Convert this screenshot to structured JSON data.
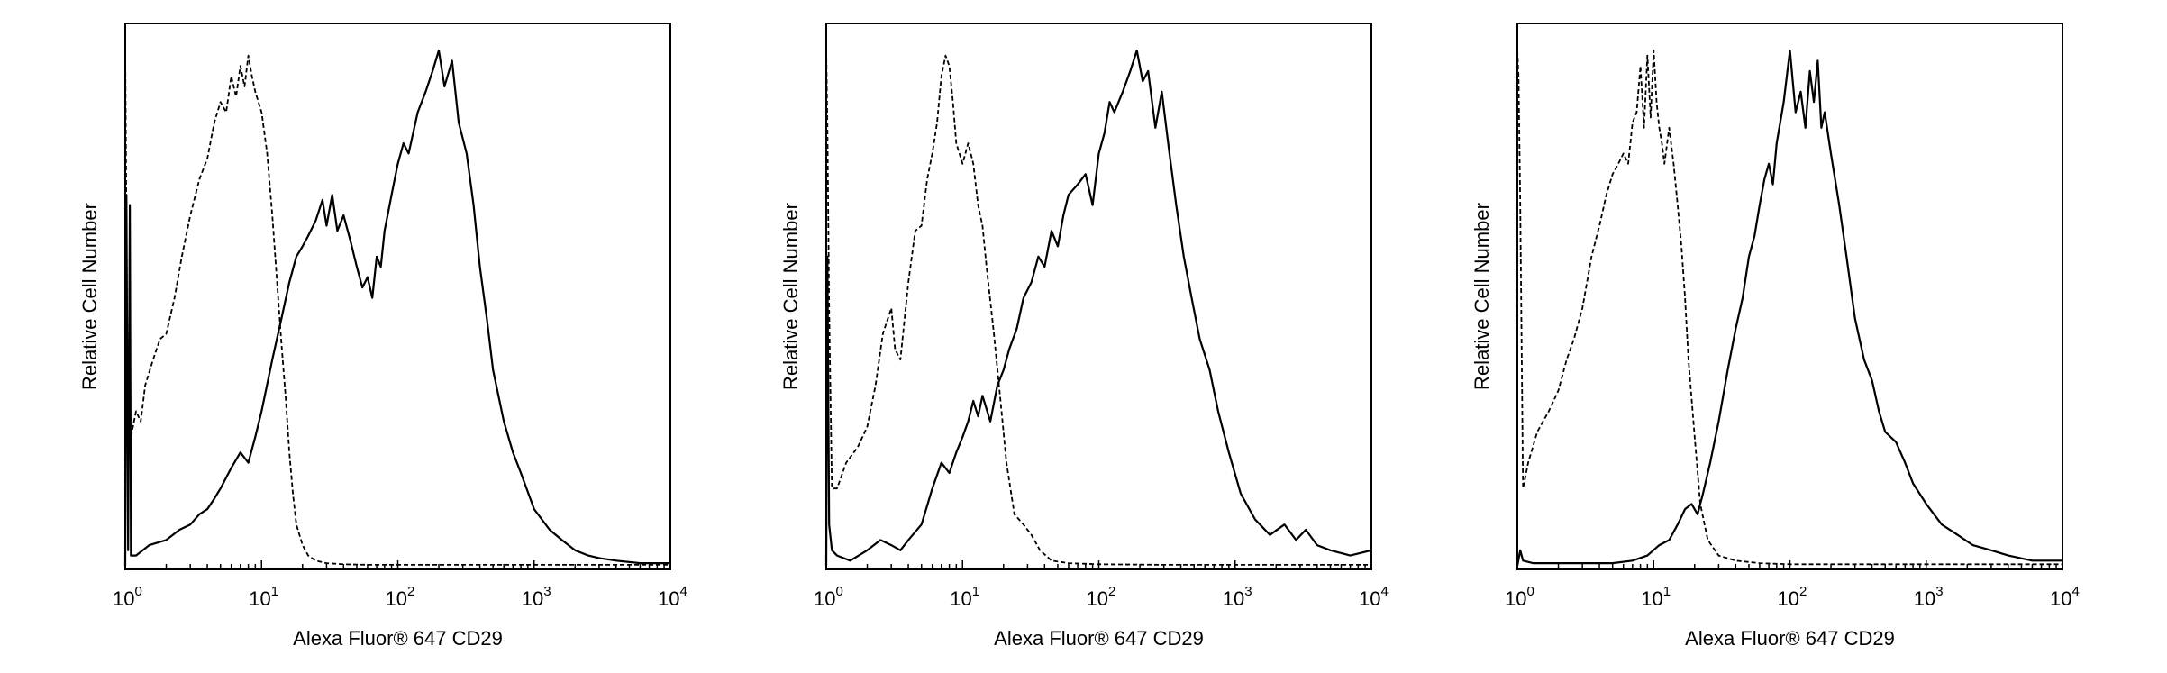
{
  "chart_data": [
    {
      "type": "line",
      "panel": "left",
      "xlabel": "Alexa Fluor® 647 CD29",
      "ylabel": "Relative Cell Number",
      "xscale": "log",
      "xlim": [
        1,
        10000
      ],
      "ylim": [
        0,
        100
      ],
      "y_tick_labels": false,
      "x_ticks": [
        {
          "base": "10",
          "exp": "0"
        },
        {
          "base": "10",
          "exp": "1"
        },
        {
          "base": "10",
          "exp": "2"
        },
        {
          "base": "10",
          "exp": "3"
        },
        {
          "base": "10",
          "exp": "4"
        }
      ],
      "grid": false,
      "series": [
        {
          "style": "dashed",
          "x": [
            1.0,
            1.05,
            1.1,
            1.2,
            1.3,
            1.4,
            1.6,
            1.8,
            2.0,
            2.3,
            2.6,
            3.0,
            3.5,
            4.0,
            4.5,
            5.0,
            5.5,
            6.0,
            6.5,
            7.0,
            7.5,
            8.0,
            8.5,
            9.0,
            10.0,
            11.0,
            12.0,
            13.0,
            14.0,
            15.0,
            16.0,
            17.0,
            18.0,
            20.0,
            22.0,
            25.0,
            30.0,
            40.0,
            60.0,
            100.0,
            200.0,
            500.0,
            1000.0,
            3000.0,
            10000.0
          ],
          "y": [
            100,
            22,
            25,
            30,
            28,
            35,
            40,
            44,
            45,
            52,
            60,
            68,
            75,
            79,
            86,
            90,
            88,
            95,
            91,
            97,
            93,
            99,
            95,
            92,
            88,
            80,
            68,
            55,
            43,
            33,
            22,
            14,
            8,
            4,
            2,
            1,
            0.5,
            0.3,
            0.2,
            0.2,
            0.2,
            0.2,
            0.2,
            0.2,
            0.2
          ]
        },
        {
          "style": "solid",
          "x": [
            1.0,
            1.02,
            1.05,
            1.08,
            1.1,
            1.2,
            1.5,
            2.0,
            2.5,
            3.0,
            3.5,
            4.0,
            4.5,
            5.0,
            6.0,
            7.0,
            8.0,
            9.0,
            10.0,
            12.0,
            14.0,
            16.0,
            18.0,
            20.0,
            22.0,
            25.0,
            28.0,
            30.0,
            33.0,
            36.0,
            40.0,
            45.0,
            50.0,
            55.0,
            60.0,
            65.0,
            70.0,
            75.0,
            80.0,
            90.0,
            100.0,
            110.0,
            120.0,
            140.0,
            160.0,
            180.0,
            200.0,
            220.0,
            250.0,
            280.0,
            320.0,
            360.0,
            400.0,
            450.0,
            500.0,
            600.0,
            700.0,
            800.0,
            1000.0,
            1300.0,
            1600.0,
            2000.0,
            2500.0,
            3000.0,
            4000.0,
            6000.0,
            10000.0
          ],
          "y": [
            0,
            72,
            3,
            70,
            2,
            2,
            4,
            5,
            7,
            8,
            10,
            11,
            13,
            15,
            19,
            22,
            20,
            25,
            30,
            40,
            48,
            55,
            60,
            62,
            64,
            67,
            71,
            66,
            72,
            65,
            68,
            63,
            58,
            54,
            56,
            52,
            60,
            58,
            65,
            72,
            78,
            82,
            80,
            88,
            92,
            96,
            100,
            93,
            98,
            86,
            80,
            70,
            58,
            48,
            38,
            28,
            22,
            18,
            11,
            7,
            5,
            3,
            2,
            1.5,
            1,
            0.5,
            0.5
          ]
        }
      ]
    },
    {
      "type": "line",
      "panel": "middle",
      "xlabel": "Alexa Fluor® 647 CD29",
      "ylabel": "Relative Cell Number",
      "xscale": "log",
      "xlim": [
        1,
        10000
      ],
      "ylim": [
        0,
        100
      ],
      "y_tick_labels": false,
      "x_ticks": [
        {
          "base": "10",
          "exp": "0"
        },
        {
          "base": "10",
          "exp": "1"
        },
        {
          "base": "10",
          "exp": "2"
        },
        {
          "base": "10",
          "exp": "3"
        },
        {
          "base": "10",
          "exp": "4"
        }
      ],
      "grid": false,
      "series": [
        {
          "style": "dashed",
          "x": [
            1.0,
            1.02,
            1.05,
            1.1,
            1.2,
            1.4,
            1.7,
            2.0,
            2.3,
            2.6,
            3.0,
            3.2,
            3.5,
            4.0,
            4.5,
            5.0,
            5.5,
            6.0,
            6.5,
            7.0,
            7.5,
            8.0,
            8.5,
            9.0,
            10.0,
            11.0,
            12.0,
            13.0,
            14.0,
            15.0,
            17.0,
            19.0,
            21.0,
            24.0,
            28.0,
            32.0,
            37.0,
            45.0,
            60.0,
            100.0,
            300.0,
            1000.0,
            10000.0
          ],
          "y": [
            100,
            85,
            50,
            15,
            15,
            20,
            23,
            27,
            35,
            45,
            50,
            42,
            40,
            55,
            65,
            66,
            75,
            80,
            86,
            95,
            99,
            97,
            90,
            82,
            78,
            82,
            78,
            70,
            66,
            58,
            45,
            32,
            20,
            10,
            8,
            6,
            3,
            1,
            0.5,
            0.3,
            0.2,
            0.2,
            0.2
          ]
        },
        {
          "style": "solid",
          "x": [
            1.0,
            1.02,
            1.05,
            1.1,
            1.2,
            1.5,
            2.0,
            2.5,
            3.0,
            3.5,
            4.0,
            5.0,
            6.0,
            7.0,
            8.0,
            9.0,
            10.0,
            11.0,
            12.0,
            13.0,
            14.0,
            16.0,
            18.0,
            20.0,
            22.0,
            25.0,
            28.0,
            32.0,
            36.0,
            40.0,
            45.0,
            50.0,
            55.0,
            60.0,
            70.0,
            80.0,
            90.0,
            100.0,
            110.0,
            120.0,
            130.0,
            150.0,
            170.0,
            190.0,
            210.0,
            230.0,
            260.0,
            290.0,
            330.0,
            370.0,
            420.0,
            480.0,
            550.0,
            650.0,
            750.0,
            900.0,
            1100.0,
            1400.0,
            1800.0,
            2300.0,
            2800.0,
            3300.0,
            4000.0,
            5000.0,
            7000.0,
            10000.0
          ],
          "y": [
            0,
            60,
            8,
            3,
            2,
            1,
            3,
            5,
            4,
            3,
            5,
            8,
            15,
            20,
            18,
            22,
            25,
            28,
            32,
            29,
            33,
            28,
            35,
            38,
            42,
            46,
            52,
            55,
            60,
            58,
            65,
            62,
            68,
            72,
            74,
            76,
            70,
            80,
            84,
            90,
            88,
            92,
            96,
            100,
            94,
            96,
            85,
            92,
            80,
            70,
            60,
            52,
            44,
            38,
            30,
            22,
            14,
            9,
            6,
            8,
            5,
            7,
            4,
            3,
            2,
            3
          ]
        }
      ]
    },
    {
      "type": "line",
      "panel": "right",
      "xlabel": "Alexa Fluor® 647 CD29",
      "ylabel": "Relative Cell Number",
      "xscale": "log",
      "xlim": [
        1,
        10000
      ],
      "ylim": [
        0,
        100
      ],
      "y_tick_labels": false,
      "x_ticks": [
        {
          "base": "10",
          "exp": "0"
        },
        {
          "base": "10",
          "exp": "1"
        },
        {
          "base": "10",
          "exp": "2"
        },
        {
          "base": "10",
          "exp": "3"
        },
        {
          "base": "10",
          "exp": "4"
        }
      ],
      "grid": false,
      "series": [
        {
          "style": "dashed",
          "x": [
            1.0,
            1.02,
            1.05,
            1.1,
            1.2,
            1.4,
            1.7,
            2.0,
            2.3,
            2.6,
            3.0,
            3.5,
            4.0,
            4.5,
            5.0,
            5.5,
            6.0,
            6.5,
            7.0,
            7.5,
            8.0,
            8.5,
            9.0,
            9.5,
            10.0,
            10.5,
            11.0,
            11.5,
            12.0,
            13.0,
            14.0,
            15.0,
            16.0,
            17.0,
            18.0,
            20.0,
            22.0,
            25.0,
            30.0,
            40.0,
            60.0,
            100.0,
            300.0,
            1000.0,
            10000.0
          ],
          "y": [
            100,
            95,
            70,
            15,
            20,
            26,
            30,
            34,
            40,
            44,
            50,
            60,
            66,
            72,
            76,
            78,
            80,
            78,
            86,
            88,
            97,
            85,
            99,
            87,
            100,
            90,
            85,
            82,
            78,
            85,
            78,
            70,
            62,
            52,
            40,
            25,
            12,
            5,
            2,
            1,
            0.5,
            0.3,
            0.3,
            0.3,
            0.3
          ]
        },
        {
          "style": "solid",
          "x": [
            1.0,
            1.05,
            1.1,
            1.3,
            1.7,
            2.0,
            3.0,
            5.0,
            7.0,
            9.0,
            11.0,
            13.0,
            15.0,
            17.0,
            19.0,
            21.0,
            23.0,
            26.0,
            30.0,
            35.0,
            40.0,
            45.0,
            50.0,
            55.0,
            60.0,
            65.0,
            70.0,
            75.0,
            80.0,
            90.0,
            100.0,
            110.0,
            120.0,
            130.0,
            140.0,
            150.0,
            160.0,
            170.0,
            180.0,
            200.0,
            230.0,
            260.0,
            300.0,
            350.0,
            400.0,
            450.0,
            500.0,
            600.0,
            700.0,
            800.0,
            1000.0,
            1300.0,
            1700.0,
            2200.0,
            3000.0,
            4000.0,
            6000.0,
            10000.0
          ],
          "y": [
            0,
            3,
            1,
            0.5,
            0.5,
            0.5,
            0.5,
            0.5,
            1,
            2,
            4,
            5,
            8,
            11,
            12,
            10,
            14,
            20,
            28,
            38,
            46,
            52,
            60,
            64,
            70,
            75,
            78,
            74,
            82,
            90,
            100,
            88,
            92,
            85,
            96,
            90,
            98,
            85,
            88,
            80,
            70,
            60,
            48,
            40,
            36,
            30,
            26,
            24,
            20,
            16,
            12,
            8,
            6,
            4,
            3,
            2,
            1,
            1
          ]
        }
      ]
    }
  ]
}
